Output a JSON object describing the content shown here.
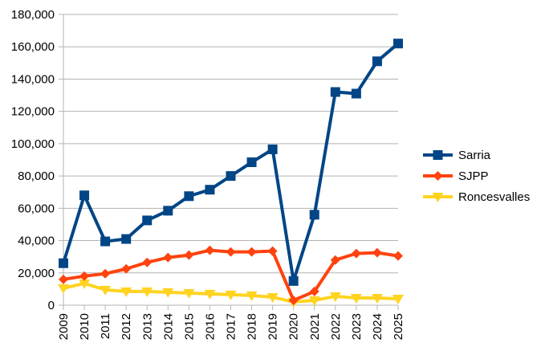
{
  "chart_data": {
    "type": "line",
    "title": "",
    "xlabel": "",
    "ylabel": "",
    "ylim": [
      0,
      180000
    ],
    "ytick_step": 20000,
    "grid": "horizontal",
    "legend_position": "right",
    "categories": [
      "2009",
      "2010",
      "2011",
      "2012",
      "2013",
      "2014",
      "2015",
      "2016",
      "2017",
      "2018",
      "2019",
      "2020",
      "2021",
      "2022",
      "2023",
      "2024",
      "2025"
    ],
    "series": [
      {
        "name": "Sarria",
        "color": "#004586",
        "marker": "square",
        "values": [
          26000,
          68000,
          39500,
          41000,
          52500,
          58500,
          67500,
          71500,
          80000,
          88500,
          96500,
          15000,
          56000,
          132000,
          131000,
          151000,
          162000
        ]
      },
      {
        "name": "SJPP",
        "color": "#ff420e",
        "marker": "diamond",
        "values": [
          16000,
          18000,
          19500,
          22500,
          26500,
          29500,
          31000,
          34000,
          33000,
          33000,
          33500,
          3000,
          8500,
          28000,
          32000,
          32500,
          30500
        ]
      },
      {
        "name": "Roncesvalles",
        "color": "#ffd320",
        "marker": "triangle-down",
        "values": [
          10500,
          13500,
          9500,
          8500,
          8500,
          8000,
          7500,
          7000,
          6500,
          6000,
          5000,
          2000,
          3000,
          5500,
          4500,
          4500,
          4000
        ]
      }
    ]
  }
}
